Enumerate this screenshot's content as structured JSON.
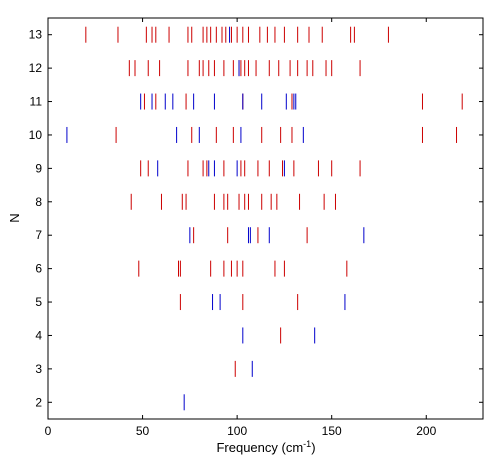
{
  "chart_data": {
    "type": "scatter",
    "marker": "vertical-line",
    "xlabel": "Frequency (cm",
    "xlabel_superscript": "-1",
    "xlabel_suffix": ")",
    "ylabel": "N",
    "xlim": [
      0,
      230
    ],
    "ylim": [
      1.5,
      13.5
    ],
    "xticks": [
      0,
      50,
      100,
      150,
      200
    ],
    "yticks": [
      2,
      3,
      4,
      5,
      6,
      7,
      8,
      9,
      10,
      11,
      12,
      13
    ],
    "grid": false,
    "legend": "none",
    "colors": {
      "red": "#cc0000",
      "blue": "#0000cc"
    },
    "series": [
      {
        "color": "red",
        "points": [
          {
            "N": 3,
            "x": [
              99
            ]
          },
          {
            "N": 4,
            "x": [
              123
            ]
          },
          {
            "N": 5,
            "x": [
              70,
              103,
              132
            ]
          },
          {
            "N": 6,
            "x": [
              48,
              69,
              70,
              86,
              93,
              97,
              100,
              103,
              120,
              125,
              158
            ]
          },
          {
            "N": 7,
            "x": [
              77,
              95,
              111,
              137
            ]
          },
          {
            "N": 8,
            "x": [
              44,
              60,
              71,
              73,
              88,
              93,
              95,
              101,
              104,
              106,
              113,
              118,
              121,
              133,
              146,
              152
            ]
          },
          {
            "N": 9,
            "x": [
              49,
              53,
              74,
              82,
              84,
              93,
              102,
              104,
              111,
              117,
              124,
              130,
              143,
              150,
              165
            ]
          },
          {
            "N": 10,
            "x": [
              36,
              76,
              89,
              98,
              113,
              123,
              129,
              198,
              216
            ]
          },
          {
            "N": 11,
            "x": [
              51,
              57,
              73,
              103,
              129,
              198,
              219
            ]
          },
          {
            "N": 12,
            "x": [
              43,
              46,
              53,
              59,
              74,
              80,
              82,
              85,
              88,
              93,
              98,
              101,
              102,
              104,
              106,
              110,
              117,
              122,
              128,
              132,
              137,
              140,
              147,
              150,
              165
            ]
          },
          {
            "N": 13,
            "x": [
              20,
              37,
              52,
              55,
              57,
              64,
              74,
              76,
              82,
              84,
              86,
              89,
              92,
              94,
              97,
              100,
              103,
              106,
              112,
              116,
              120,
              125,
              132,
              138,
              145,
              160,
              162,
              180
            ]
          }
        ]
      },
      {
        "color": "blue",
        "points": [
          {
            "N": 2,
            "x": [
              72
            ]
          },
          {
            "N": 3,
            "x": [
              108
            ]
          },
          {
            "N": 4,
            "x": [
              103,
              141
            ]
          },
          {
            "N": 5,
            "x": [
              87,
              91,
              157
            ]
          },
          {
            "N": 7,
            "x": [
              75,
              106,
              107,
              117,
              167
            ]
          },
          {
            "N": 9,
            "x": [
              58,
              85,
              88,
              100,
              125
            ]
          },
          {
            "N": 10,
            "x": [
              10,
              68,
              80,
              102,
              135
            ]
          },
          {
            "N": 11,
            "x": [
              49,
              55,
              62,
              66,
              77,
              88,
              103,
              113,
              126,
              130,
              131
            ]
          },
          {
            "N": 12,
            "x": [
              101
            ]
          },
          {
            "N": 13,
            "x": [
              96
            ]
          }
        ]
      }
    ]
  }
}
